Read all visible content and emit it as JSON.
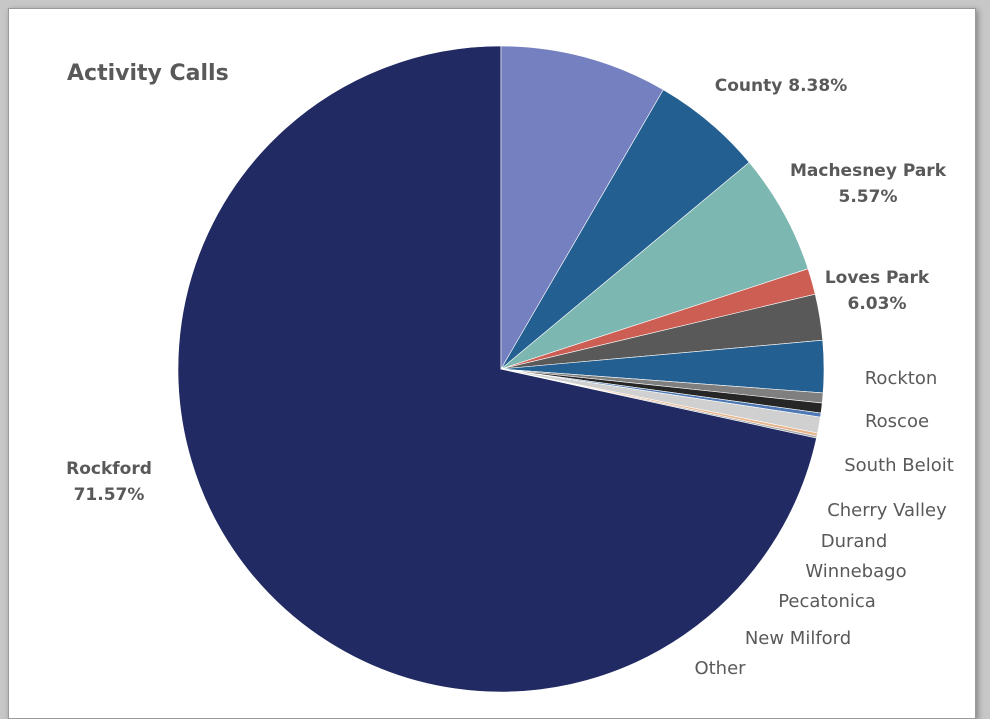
{
  "chart_data": {
    "type": "pie",
    "title": "Activity Calls",
    "slices": [
      {
        "name": "Rockford",
        "label_lines": [
          "Rockford",
          "71.57%"
        ],
        "value": 71.57,
        "color": "#212a62",
        "bold": true
      },
      {
        "name": "County",
        "label_lines": [
          "County 8.38%"
        ],
        "value": 8.38,
        "color": "#7480c0",
        "bold": true
      },
      {
        "name": "Machesney Park",
        "label_lines": [
          "Machesney Park",
          "5.57%"
        ],
        "value": 5.57,
        "color": "#245f91",
        "bold": true
      },
      {
        "name": "Loves Park",
        "label_lines": [
          "Loves Park",
          "6.03%"
        ],
        "value": 6.03,
        "color": "#7db7b2",
        "bold": true
      },
      {
        "name": "Rockton",
        "label_lines": [
          "Rockton"
        ],
        "value": 1.3,
        "color": "#cd5e53",
        "bold": false
      },
      {
        "name": "Roscoe",
        "label_lines": [
          "Roscoe"
        ],
        "value": 2.3,
        "color": "#595959",
        "bold": false
      },
      {
        "name": "South Beloit",
        "label_lines": [
          "South Beloit"
        ],
        "value": 2.6,
        "color": "#245f91",
        "bold": false
      },
      {
        "name": "Cherry Valley",
        "label_lines": [
          "Cherry Valley"
        ],
        "value": 0.5,
        "color": "#7f7f7f",
        "bold": false
      },
      {
        "name": "Durand",
        "label_lines": [
          "Durand"
        ],
        "value": 0.5,
        "color": "#262626",
        "bold": false
      },
      {
        "name": "Winnebago",
        "label_lines": [
          "Winnebago"
        ],
        "value": 0.2,
        "color": "#4e79b4",
        "bold": false
      },
      {
        "name": "Pecatonica",
        "label_lines": [
          "Pecatonica"
        ],
        "value": 0.8,
        "color": "#d0d0d0",
        "bold": false
      },
      {
        "name": "New Milford",
        "label_lines": [
          "New Milford"
        ],
        "value": 0.15,
        "color": "#e8b48a",
        "bold": false
      },
      {
        "name": "Other",
        "label_lines": [
          "Other"
        ],
        "value": 0.1,
        "color": "#a6a6a6",
        "bold": false
      }
    ]
  }
}
